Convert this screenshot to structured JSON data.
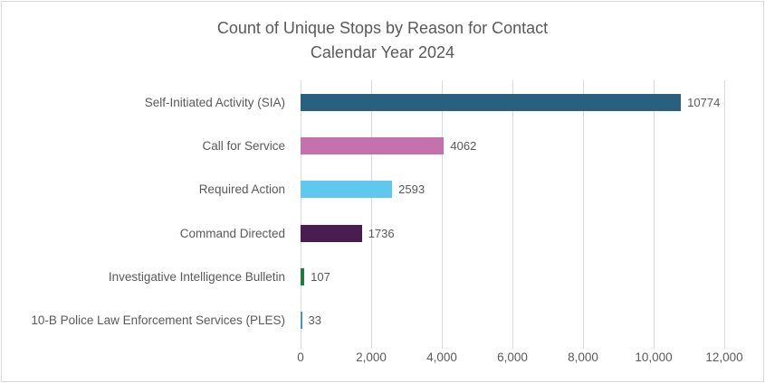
{
  "title": {
    "line1": "Count of Unique Stops by Reason for Contact",
    "line2": "Calendar Year 2024"
  },
  "chart_data": {
    "type": "bar",
    "orientation": "horizontal",
    "title": "Count of Unique Stops by Reason for Contact",
    "subtitle": "Calendar Year 2024",
    "categories": [
      "Self-Initiated Activity (SIA)",
      "Call for Service",
      "Required Action",
      "Command Directed",
      "Investigative Intelligence Bulletin",
      "10-B Police Law Enforcement Services (PLES)"
    ],
    "values": [
      10774,
      4062,
      2593,
      1736,
      107,
      33
    ],
    "value_labels": [
      "10774",
      "4062",
      "2593",
      "1736",
      "107",
      "33"
    ],
    "bar_colors": [
      "#29607f",
      "#c471ae",
      "#5fc8ee",
      "#491d50",
      "#1e7c3d",
      "#4e91bd"
    ],
    "xlim": [
      0,
      12000
    ],
    "x_tick_values": [
      0,
      2000,
      4000,
      6000,
      8000,
      10000,
      12000
    ],
    "x_tick_labels": [
      "0",
      "2,000",
      "4,000",
      "6,000",
      "8,000",
      "10,000",
      "12,000"
    ],
    "ylabel": "",
    "xlabel": "",
    "legend": "none",
    "grid": "vertical",
    "text_color": "#595959",
    "gridline_color": "#d9d9d9",
    "border_color": "#d9d9d9",
    "background_color": "#ffffff"
  }
}
